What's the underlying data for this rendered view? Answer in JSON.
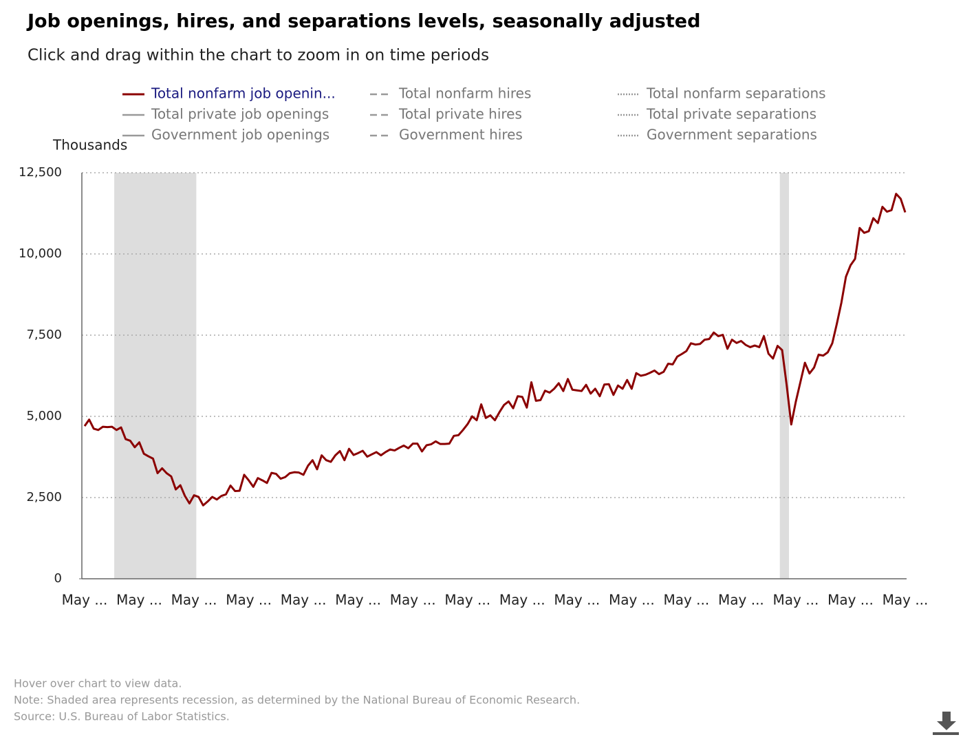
{
  "chart_data": {
    "type": "line",
    "title": "Job openings, hires, and separations levels, seasonally adjusted",
    "subtitle": "Click and drag within the chart to zoom in on time periods",
    "y_label": "Thousands",
    "notes": [
      "Hover over chart to view data.",
      "Note: Shaded area represents recession, as determined by the National Bureau of Economic Research.",
      "Source: U.S. Bureau of Labor Statistics."
    ],
    "categories": [
      "May ...",
      null,
      null,
      null,
      null,
      null,
      null,
      null,
      null,
      null,
      null,
      null,
      "May ...",
      null,
      null,
      null,
      null,
      null,
      null,
      null,
      null,
      null,
      null,
      null,
      "May ...",
      null,
      null,
      null,
      null,
      null,
      null,
      null,
      null,
      null,
      null,
      null,
      "May ...",
      null,
      null,
      null,
      null,
      null,
      null,
      null,
      null,
      null,
      null,
      null,
      "May ...",
      null,
      null,
      null,
      null,
      null,
      null,
      null,
      null,
      null,
      null,
      null,
      "May ...",
      null,
      null,
      null,
      null,
      null,
      null,
      null,
      null,
      null,
      null,
      null,
      "May ...",
      null,
      null,
      null,
      null,
      null,
      null,
      null,
      null,
      null,
      null,
      null,
      "May ...",
      null,
      null,
      null,
      null,
      null,
      null,
      null,
      null,
      null,
      null,
      null,
      "May ...",
      null,
      null,
      null,
      null,
      null,
      null,
      null,
      null,
      null,
      null,
      null,
      "May ...",
      null,
      null,
      null,
      null,
      null,
      null,
      null,
      null,
      null,
      null,
      null,
      "May ...",
      null,
      null,
      null,
      null,
      null,
      null,
      null,
      null,
      null,
      null,
      null,
      "May ...",
      null,
      null,
      null,
      null,
      null,
      null,
      null,
      null,
      null,
      null,
      null,
      "May ...",
      null,
      null,
      null,
      null,
      null,
      null,
      null,
      null,
      null,
      null,
      null,
      "May ...",
      null,
      null,
      null,
      null,
      null,
      null,
      null,
      null,
      null,
      null,
      null,
      "May ...",
      null,
      null,
      null,
      null,
      null,
      null,
      null,
      null,
      null,
      null,
      null,
      "May ..."
    ],
    "recessions": [
      {
        "start": 7,
        "end": 25
      },
      {
        "start": 153,
        "end": 155
      }
    ],
    "recession_color": "#dddddd",
    "ylim": [
      0,
      12500
    ],
    "yticks": [
      0,
      {
        "value": 2500,
        "label": "2,500"
      },
      {
        "value": 5000,
        "label": "5,000"
      },
      {
        "value": 7500,
        "label": "7,500"
      },
      {
        "value": 10000,
        "label": "10,000"
      },
      {
        "value": 12500,
        "label": "12,500"
      }
    ],
    "grid": true,
    "series": [
      {
        "name": "Total nonfarm job openin...",
        "color": "#8b0000",
        "dash": "solid",
        "visible": true,
        "values": [
          4700,
          4900,
          4620,
          4580,
          4680,
          4670,
          4680,
          4580,
          4660,
          4300,
          4250,
          4050,
          4200,
          3850,
          3770,
          3700,
          3250,
          3400,
          3250,
          3150,
          2750,
          2880,
          2550,
          2320,
          2570,
          2520,
          2260,
          2380,
          2520,
          2440,
          2550,
          2600,
          2870,
          2700,
          2710,
          3200,
          3030,
          2830,
          3100,
          3030,
          2950,
          3260,
          3230,
          3080,
          3130,
          3250,
          3280,
          3270,
          3200,
          3480,
          3650,
          3370,
          3800,
          3650,
          3600,
          3800,
          3930,
          3650,
          4000,
          3810,
          3870,
          3940,
          3760,
          3830,
          3900,
          3800,
          3900,
          3980,
          3950,
          4030,
          4100,
          4020,
          4160,
          4160,
          3920,
          4110,
          4140,
          4230,
          4150,
          4150,
          4160,
          4400,
          4420,
          4580,
          4760,
          5000,
          4880,
          5370,
          4950,
          5030,
          4880,
          5130,
          5350,
          5460,
          5250,
          5620,
          5600,
          5270,
          6050,
          5480,
          5500,
          5790,
          5730,
          5850,
          6020,
          5780,
          6150,
          5820,
          5800,
          5780,
          5970,
          5700,
          5850,
          5620,
          5980,
          5990,
          5660,
          5950,
          5850,
          6120,
          5850,
          6330,
          6250,
          6280,
          6340,
          6410,
          6300,
          6370,
          6620,
          6600,
          6840,
          6920,
          7010,
          7250,
          7210,
          7230,
          7360,
          7380,
          7580,
          7470,
          7510,
          7080,
          7360,
          7260,
          7320,
          7200,
          7130,
          7180,
          7130,
          7470,
          6930,
          6780,
          7170,
          7040,
          5960,
          4750,
          5450,
          6050,
          6650,
          6320,
          6500,
          6900,
          6870,
          6970,
          7250,
          7850,
          8500,
          9300,
          9650,
          9850,
          10800,
          10650,
          10700,
          11100,
          10950,
          11450,
          11300,
          11350,
          11850,
          11700,
          11280
        ]
      },
      {
        "name": "Total private job openings",
        "color": "#888888",
        "dash": "solid",
        "visible": false
      },
      {
        "name": "Government job openings",
        "color": "#888888",
        "dash": "solid",
        "visible": false
      },
      {
        "name": "Total nonfarm hires",
        "color": "#888888",
        "dash": "dashed",
        "visible": false
      },
      {
        "name": "Total private hires",
        "color": "#888888",
        "dash": "dashed",
        "visible": false
      },
      {
        "name": "Government hires",
        "color": "#888888",
        "dash": "dashed",
        "visible": false
      },
      {
        "name": "Total nonfarm separations",
        "color": "#888888",
        "dash": "dotted",
        "visible": false
      },
      {
        "name": "Total private separations",
        "color": "#888888",
        "dash": "dotted",
        "visible": false
      },
      {
        "name": "Government separations",
        "color": "#888888",
        "dash": "dotted",
        "visible": false
      }
    ]
  }
}
